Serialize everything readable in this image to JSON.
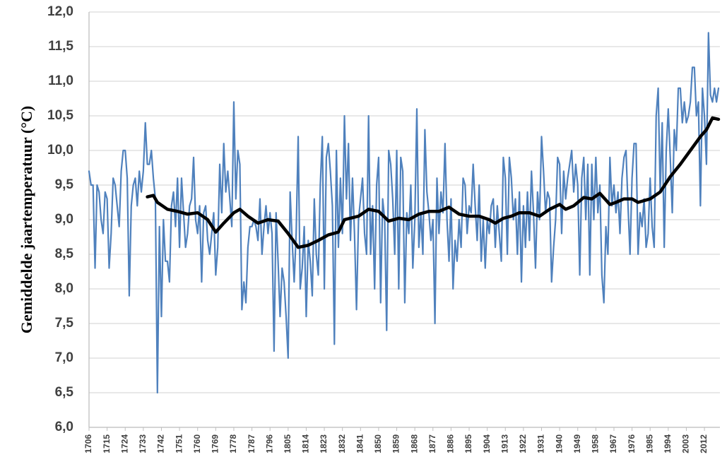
{
  "chart_data": {
    "type": "line",
    "ylabel": "Gemiddelde jaartemperatuur (°C)",
    "xlim": [
      1706,
      2019
    ],
    "xticks": [
      1706,
      1715,
      1724,
      1733,
      1742,
      1751,
      1760,
      1769,
      1778,
      1787,
      1796,
      1805,
      1814,
      1823,
      1832,
      1841,
      1850,
      1859,
      1868,
      1877,
      1886,
      1895,
      1904,
      1913,
      1922,
      1931,
      1940,
      1949,
      1958,
      1967,
      1976,
      1985,
      1994,
      2003,
      2012
    ],
    "ylim": [
      6,
      12
    ],
    "yticks": [
      {
        "value": 6,
        "label": "6,0"
      },
      {
        "value": 6.5,
        "label": "6,5"
      },
      {
        "value": 7,
        "label": "7,0"
      },
      {
        "value": 7.5,
        "label": "7,5"
      },
      {
        "value": 8,
        "label": "8,0"
      },
      {
        "value": 8.5,
        "label": "8,5"
      },
      {
        "value": 9,
        "label": "9,0"
      },
      {
        "value": 9.5,
        "label": "9,5"
      },
      {
        "value": 10,
        "label": "10,0"
      },
      {
        "value": 10.5,
        "label": "10,5"
      },
      {
        "value": 11,
        "label": "11,0"
      },
      {
        "value": 11.5,
        "label": "11,5"
      },
      {
        "value": 12,
        "label": "12,0"
      }
    ],
    "grid": true,
    "x": [
      1706,
      1707,
      1708,
      1709,
      1710,
      1711,
      1712,
      1713,
      1714,
      1715,
      1716,
      1717,
      1718,
      1719,
      1720,
      1721,
      1722,
      1723,
      1724,
      1725,
      1726,
      1727,
      1728,
      1729,
      1730,
      1731,
      1732,
      1733,
      1734,
      1735,
      1736,
      1737,
      1738,
      1739,
      1740,
      1741,
      1742,
      1743,
      1744,
      1745,
      1746,
      1747,
      1748,
      1749,
      1750,
      1751,
      1752,
      1753,
      1754,
      1755,
      1756,
      1757,
      1758,
      1759,
      1760,
      1761,
      1762,
      1763,
      1764,
      1765,
      1766,
      1767,
      1768,
      1769,
      1770,
      1771,
      1772,
      1773,
      1774,
      1775,
      1776,
      1777,
      1778,
      1779,
      1780,
      1781,
      1782,
      1783,
      1784,
      1785,
      1786,
      1787,
      1788,
      1789,
      1790,
      1791,
      1792,
      1793,
      1794,
      1795,
      1796,
      1797,
      1798,
      1799,
      1800,
      1801,
      1802,
      1803,
      1804,
      1805,
      1806,
      1807,
      1808,
      1809,
      1810,
      1811,
      1812,
      1813,
      1814,
      1815,
      1816,
      1817,
      1818,
      1819,
      1820,
      1821,
      1822,
      1823,
      1824,
      1825,
      1826,
      1827,
      1828,
      1829,
      1830,
      1831,
      1832,
      1833,
      1834,
      1835,
      1836,
      1837,
      1838,
      1839,
      1840,
      1841,
      1842,
      1843,
      1844,
      1845,
      1846,
      1847,
      1848,
      1849,
      1850,
      1851,
      1852,
      1853,
      1854,
      1855,
      1856,
      1857,
      1858,
      1859,
      1860,
      1861,
      1862,
      1863,
      1864,
      1865,
      1866,
      1867,
      1868,
      1869,
      1870,
      1871,
      1872,
      1873,
      1874,
      1875,
      1876,
      1877,
      1878,
      1879,
      1880,
      1881,
      1882,
      1883,
      1884,
      1885,
      1886,
      1887,
      1888,
      1889,
      1890,
      1891,
      1892,
      1893,
      1894,
      1895,
      1896,
      1897,
      1898,
      1899,
      1900,
      1901,
      1902,
      1903,
      1904,
      1905,
      1906,
      1907,
      1908,
      1909,
      1910,
      1911,
      1912,
      1913,
      1914,
      1915,
      1916,
      1917,
      1918,
      1919,
      1920,
      1921,
      1922,
      1923,
      1924,
      1925,
      1926,
      1927,
      1928,
      1929,
      1930,
      1931,
      1932,
      1933,
      1934,
      1935,
      1936,
      1937,
      1938,
      1939,
      1940,
      1941,
      1942,
      1943,
      1944,
      1945,
      1946,
      1947,
      1948,
      1949,
      1950,
      1951,
      1952,
      1953,
      1954,
      1955,
      1956,
      1957,
      1958,
      1959,
      1960,
      1961,
      1962,
      1963,
      1964,
      1965,
      1966,
      1967,
      1968,
      1969,
      1970,
      1971,
      1972,
      1973,
      1974,
      1975,
      1976,
      1977,
      1978,
      1979,
      1980,
      1981,
      1982,
      1983,
      1984,
      1985,
      1986,
      1987,
      1988,
      1989,
      1990,
      1991,
      1992,
      1993,
      1994,
      1995,
      1996,
      1997,
      1998,
      1999,
      2000,
      2001,
      2002,
      2003,
      2004,
      2005,
      2006,
      2007,
      2008,
      2009,
      2010,
      2011,
      2012,
      2013,
      2014,
      2015,
      2016,
      2017,
      2018,
      2019
    ],
    "series": [
      {
        "color": "#4f81bd",
        "values": [
          9.7,
          9.5,
          9.5,
          8.3,
          9.5,
          9.4,
          9.0,
          8.8,
          9.4,
          9.3,
          8.3,
          8.8,
          9.6,
          9.5,
          9.2,
          8.9,
          9.7,
          10.0,
          10.0,
          9.6,
          7.9,
          9.2,
          9.5,
          9.6,
          9.2,
          9.7,
          9.4,
          9.7,
          10.4,
          9.8,
          9.8,
          10.0,
          9.6,
          9.3,
          6.5,
          8.9,
          7.6,
          9.0,
          8.4,
          8.4,
          8.1,
          9.2,
          9.4,
          8.9,
          9.6,
          8.6,
          9.6,
          9.1,
          8.6,
          8.8,
          9.2,
          9.3,
          9.9,
          9.0,
          8.8,
          9.2,
          8.1,
          9.1,
          9.2,
          8.7,
          8.5,
          8.8,
          9.1,
          8.2,
          8.6,
          9.8,
          9.1,
          10.1,
          9.4,
          9.7,
          9.3,
          8.9,
          10.7,
          9.3,
          10.0,
          9.8,
          7.7,
          8.1,
          7.8,
          8.6,
          8.9,
          8.9,
          9.0,
          8.9,
          8.7,
          9.3,
          8.5,
          8.9,
          9.2,
          8.8,
          9.1,
          8.8,
          7.1,
          9.1,
          8.4,
          7.6,
          8.3,
          8.1,
          7.6,
          7.0,
          9.4,
          8.7,
          8.1,
          8.8,
          10.2,
          8.0,
          8.3,
          8.9,
          7.6,
          8.7,
          8.4,
          7.9,
          9.3,
          8.5,
          8.2,
          9.5,
          10.2,
          8.0,
          9.9,
          10.1,
          9.7,
          9.2,
          7.2,
          10.0,
          8.6,
          9.6,
          8.8,
          10.5,
          9.3,
          10.1,
          8.7,
          9.6,
          8.8,
          7.7,
          9.0,
          9.3,
          9.6,
          8.8,
          8.5,
          10.5,
          8.5,
          9.2,
          8.0,
          9.5,
          9.9,
          7.8,
          9.3,
          9.0,
          7.4,
          10.0,
          9.8,
          9.3,
          8.5,
          10.0,
          8.0,
          9.9,
          9.7,
          7.8,
          9.1,
          8.8,
          9.5,
          8.3,
          9.0,
          10.6,
          8.6,
          9.1,
          8.5,
          10.3,
          9.4,
          9.1,
          8.7,
          9.0,
          7.5,
          9.6,
          8.8,
          9.4,
          9.1,
          10.1,
          9.0,
          8.4,
          9.3,
          8.0,
          8.7,
          8.4,
          9.0,
          8.6,
          9.6,
          9.5,
          8.8,
          9.2,
          9.1,
          9.8,
          9.2,
          8.7,
          9.5,
          8.4,
          9.0,
          8.3,
          9.0,
          8.8,
          9.2,
          9.3,
          8.6,
          9.2,
          8.8,
          8.4,
          9.9,
          9.6,
          8.5,
          9.9,
          9.6,
          9.0,
          9.3,
          8.5,
          9.4,
          8.1,
          9.2,
          8.6,
          9.4,
          8.7,
          9.7,
          9.1,
          8.3,
          9.4,
          9.0,
          10.2,
          9.7,
          9.1,
          9.4,
          9.3,
          8.1,
          8.6,
          9.0,
          9.9,
          9.8,
          8.8,
          9.7,
          9.3,
          9.6,
          9.8,
          10.0,
          9.4,
          9.8,
          9.5,
          8.2,
          9.6,
          9.9,
          9.0,
          9.8,
          8.2,
          9.8,
          9.0,
          9.9,
          9.1,
          9.5,
          8.2,
          7.8,
          8.9,
          8.5,
          9.9,
          9.2,
          9.5,
          9.1,
          9.4,
          8.8,
          9.6,
          9.9,
          10.0,
          9.2,
          8.5,
          9.6,
          10.1,
          10.1,
          8.5,
          9.1,
          8.9,
          9.3,
          8.6,
          8.8,
          9.6,
          8.9,
          8.6,
          10.5,
          10.9,
          9.4,
          10.4,
          8.6,
          10.0,
          10.6,
          9.9,
          9.1,
          10.3,
          10.0,
          10.9,
          10.9,
          10.4,
          10.7,
          10.4,
          10.5,
          10.7,
          11.2,
          11.2,
          10.5,
          10.7,
          9.2,
          10.9,
          10.5,
          9.8,
          11.7,
          10.8,
          10.7,
          10.9,
          10.7,
          10.9
        ]
      },
      {
        "color": "#000000",
        "x": [
          1735,
          1738,
          1740,
          1745,
          1750,
          1755,
          1760,
          1765,
          1769,
          1773,
          1778,
          1781,
          1785,
          1790,
          1795,
          1800,
          1805,
          1810,
          1815,
          1820,
          1825,
          1830,
          1833,
          1840,
          1845,
          1850,
          1855,
          1860,
          1865,
          1870,
          1875,
          1880,
          1885,
          1890,
          1895,
          1900,
          1905,
          1908,
          1912,
          1916,
          1920,
          1925,
          1930,
          1935,
          1940,
          1943,
          1947,
          1952,
          1956,
          1960,
          1965,
          1968,
          1972,
          1976,
          1979,
          1985,
          1990,
          1995,
          2000,
          2005,
          2010,
          2013,
          2016,
          2019
        ],
        "values": [
          9.33,
          9.35,
          9.25,
          9.15,
          9.12,
          9.08,
          9.1,
          9.0,
          8.82,
          8.95,
          9.1,
          9.15,
          9.05,
          8.95,
          9.0,
          8.98,
          8.8,
          8.6,
          8.63,
          8.7,
          8.78,
          8.82,
          9.0,
          9.05,
          9.15,
          9.12,
          8.98,
          9.02,
          9.0,
          9.08,
          9.12,
          9.12,
          9.18,
          9.08,
          9.05,
          9.05,
          9.0,
          8.95,
          9.02,
          9.05,
          9.1,
          9.1,
          9.05,
          9.15,
          9.22,
          9.15,
          9.2,
          9.32,
          9.3,
          9.38,
          9.22,
          9.25,
          9.3,
          9.3,
          9.25,
          9.3,
          9.4,
          9.62,
          9.8,
          10.0,
          10.2,
          10.3,
          10.47,
          10.45
        ]
      }
    ]
  }
}
